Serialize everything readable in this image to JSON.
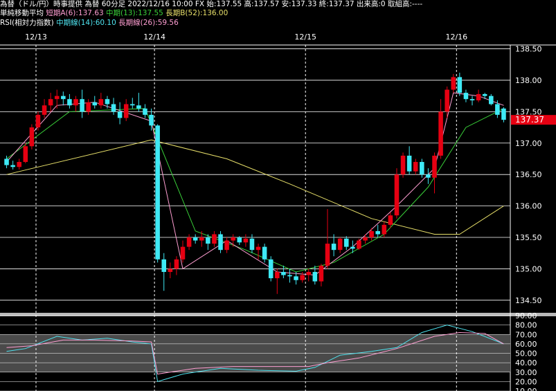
{
  "header": {
    "line1": "為替（ドル/円）時事提供 為替 60分足 2022/12/16 10:00 FX 始:137.55 高:137.57 安:137.33 終:137.37 出来高:0 取組高:----",
    "ma_label": "単純移動平均",
    "ma_short": "短期A(6):137.63",
    "ma_mid": "中期(13):137.55",
    "ma_long": "長期B(52):136.00",
    "rsi_label": "RSI(相対力指数)",
    "rsi_mid": "中期線(14):60.10",
    "rsi_long": "長期線(26):59.56"
  },
  "colors": {
    "up": "#e60012",
    "down": "#3ee9f5",
    "ma_short": "#ff9ed2",
    "ma_mid": "#39d039",
    "ma_long": "#e8e06a",
    "rsi_mid": "#4fe4f0",
    "rsi_long": "#ff9ed2",
    "last_price_bg": "#e60012"
  },
  "last_price": "137.37",
  "chart_data": [
    {
      "type": "candlestick",
      "x": [
        "12/13",
        "12/14",
        "12/15",
        "12/16"
      ],
      "ylim": [
        134.3,
        138.55
      ],
      "yticks": [
        "138.50",
        "138.00",
        "137.50",
        "137.00",
        "136.50",
        "136.00",
        "135.50",
        "135.00",
        "134.50"
      ],
      "candles": [
        [
          136.75,
          136.8,
          136.6,
          136.65
        ],
        [
          136.65,
          136.72,
          136.58,
          136.62
        ],
        [
          136.62,
          136.75,
          136.58,
          136.7
        ],
        [
          136.7,
          137.0,
          136.68,
          136.95
        ],
        [
          136.95,
          137.3,
          136.9,
          137.25
        ],
        [
          137.25,
          137.5,
          137.2,
          137.45
        ],
        [
          137.45,
          137.7,
          137.4,
          137.6
        ],
        [
          137.6,
          137.8,
          137.5,
          137.7
        ],
        [
          137.7,
          137.85,
          137.55,
          137.75
        ],
        [
          137.75,
          137.82,
          137.6,
          137.7
        ],
        [
          137.7,
          137.78,
          137.55,
          137.6
        ],
        [
          137.6,
          137.75,
          137.5,
          137.7
        ],
        [
          137.7,
          137.85,
          137.4,
          137.5
        ],
        [
          137.5,
          137.7,
          137.45,
          137.65
        ],
        [
          137.65,
          137.75,
          137.55,
          137.6
        ],
        [
          137.6,
          137.8,
          137.55,
          137.7
        ],
        [
          137.7,
          137.75,
          137.55,
          137.62
        ],
        [
          137.62,
          137.72,
          137.45,
          137.5
        ],
        [
          137.5,
          137.65,
          137.3,
          137.4
        ],
        [
          137.4,
          137.7,
          137.35,
          137.62
        ],
        [
          137.62,
          137.72,
          137.55,
          137.6
        ],
        [
          137.6,
          137.8,
          137.5,
          137.55
        ],
        [
          137.55,
          137.62,
          137.4,
          137.45
        ],
        [
          137.45,
          137.55,
          137.2,
          137.28
        ],
        [
          137.28,
          137.3,
          135.1,
          135.15
        ],
        [
          135.15,
          135.25,
          134.65,
          134.95
        ],
        [
          134.95,
          135.1,
          134.85,
          135.0
        ],
        [
          135.0,
          135.2,
          134.9,
          135.15
        ],
        [
          135.15,
          135.45,
          135.1,
          135.35
        ],
        [
          135.35,
          135.55,
          135.3,
          135.5
        ],
        [
          135.5,
          135.55,
          135.4,
          135.45
        ],
        [
          135.45,
          135.6,
          135.35,
          135.5
        ],
        [
          135.5,
          135.55,
          135.3,
          135.4
        ],
        [
          135.4,
          135.6,
          135.35,
          135.55
        ],
        [
          135.55,
          135.6,
          135.25,
          135.3
        ],
        [
          135.3,
          135.5,
          135.25,
          135.45
        ],
        [
          135.45,
          135.55,
          135.35,
          135.5
        ],
        [
          135.5,
          135.52,
          135.38,
          135.42
        ],
        [
          135.42,
          135.55,
          135.35,
          135.48
        ],
        [
          135.48,
          135.55,
          135.25,
          135.3
        ],
        [
          135.3,
          135.4,
          135.15,
          135.35
        ],
        [
          135.35,
          135.4,
          135.1,
          135.15
        ],
        [
          135.15,
          135.2,
          134.8,
          134.85
        ],
        [
          134.85,
          135.0,
          134.6,
          134.95
        ],
        [
          134.95,
          135.05,
          134.85,
          134.9
        ],
        [
          134.9,
          135.0,
          134.78,
          134.88
        ],
        [
          134.88,
          134.95,
          134.75,
          134.82
        ],
        [
          134.82,
          134.95,
          134.78,
          134.9
        ],
        [
          134.9,
          135.0,
          134.8,
          134.95
        ],
        [
          134.95,
          135.05,
          134.75,
          134.8
        ],
        [
          134.8,
          135.08,
          134.72,
          135.05
        ],
        [
          135.05,
          135.95,
          135.0,
          135.4
        ],
        [
          135.4,
          135.55,
          135.2,
          135.3
        ],
        [
          135.3,
          135.5,
          135.25,
          135.48
        ],
        [
          135.48,
          135.52,
          135.3,
          135.35
        ],
        [
          135.35,
          135.45,
          135.25,
          135.32
        ],
        [
          135.32,
          135.48,
          135.3,
          135.45
        ],
        [
          135.45,
          135.55,
          135.4,
          135.5
        ],
        [
          135.5,
          135.65,
          135.45,
          135.6
        ],
        [
          135.6,
          135.7,
          135.5,
          135.55
        ],
        [
          135.55,
          135.75,
          135.5,
          135.7
        ],
        [
          135.7,
          135.9,
          135.65,
          135.85
        ],
        [
          135.85,
          136.6,
          135.8,
          136.5
        ],
        [
          136.5,
          136.85,
          136.45,
          136.8
        ],
        [
          136.8,
          136.95,
          136.5,
          136.55
        ],
        [
          136.55,
          136.75,
          136.5,
          136.7
        ],
        [
          136.7,
          136.75,
          136.45,
          136.5
        ],
        [
          136.5,
          136.6,
          136.35,
          136.45
        ],
        [
          136.45,
          136.85,
          136.2,
          136.8
        ],
        [
          136.8,
          137.7,
          136.75,
          137.5
        ],
        [
          137.5,
          137.9,
          137.4,
          137.85
        ],
        [
          137.85,
          138.1,
          137.8,
          138.05
        ],
        [
          138.05,
          138.12,
          137.75,
          137.8
        ],
        [
          137.8,
          137.85,
          137.65,
          137.7
        ],
        [
          137.7,
          137.75,
          137.6,
          137.68
        ],
        [
          137.68,
          137.85,
          137.65,
          137.78
        ],
        [
          137.78,
          137.8,
          137.7,
          137.75
        ],
        [
          137.75,
          137.78,
          137.6,
          137.62
        ],
        [
          137.62,
          137.68,
          137.4,
          137.45
        ],
        [
          137.55,
          137.57,
          137.33,
          137.37
        ]
      ],
      "ma_short": [
        [
          0,
          136.7
        ],
        [
          8,
          137.6
        ],
        [
          14,
          137.65
        ],
        [
          23,
          137.35
        ],
        [
          28,
          135.0
        ],
        [
          35,
          135.45
        ],
        [
          43,
          134.95
        ],
        [
          49,
          134.9
        ],
        [
          55,
          135.35
        ],
        [
          62,
          136.0
        ],
        [
          68,
          136.6
        ],
        [
          71,
          137.8
        ],
        [
          75,
          137.75
        ],
        [
          79,
          137.6
        ]
      ],
      "ma_mid": [
        [
          0,
          136.75
        ],
        [
          10,
          137.5
        ],
        [
          22,
          137.55
        ],
        [
          30,
          135.6
        ],
        [
          38,
          135.3
        ],
        [
          46,
          134.95
        ],
        [
          52,
          135.1
        ],
        [
          60,
          135.55
        ],
        [
          67,
          136.3
        ],
        [
          73,
          137.25
        ],
        [
          79,
          137.55
        ]
      ],
      "ma_long": [
        [
          0,
          136.5
        ],
        [
          23,
          137.05
        ],
        [
          35,
          136.75
        ],
        [
          45,
          136.35
        ],
        [
          58,
          135.8
        ],
        [
          68,
          135.55
        ],
        [
          72,
          135.55
        ],
        [
          79,
          136.0
        ]
      ]
    },
    {
      "type": "line",
      "title": "RSI",
      "ylim": [
        10,
        90
      ],
      "yticks": [
        "90.00",
        "80.00",
        "70.00",
        "60.00",
        "50.00",
        "40.00",
        "30.00",
        "20.00",
        "10.00"
      ],
      "series": [
        {
          "name": "中期線(14)",
          "values": [
            [
              0,
              52
            ],
            [
              3,
              55
            ],
            [
              8,
              68
            ],
            [
              12,
              64
            ],
            [
              16,
              66
            ],
            [
              20,
              62
            ],
            [
              23,
              60
            ],
            [
              24,
              20
            ],
            [
              28,
              28
            ],
            [
              34,
              34
            ],
            [
              40,
              32
            ],
            [
              46,
              31
            ],
            [
              49,
              35
            ],
            [
              53,
              48
            ],
            [
              58,
              52
            ],
            [
              62,
              56
            ],
            [
              66,
              72
            ],
            [
              70,
              80
            ],
            [
              74,
              73
            ],
            [
              79,
              60
            ]
          ]
        },
        {
          "name": "長期線(26)",
          "values": [
            [
              0,
              56
            ],
            [
              4,
              58
            ],
            [
              9,
              64
            ],
            [
              14,
              64
            ],
            [
              20,
              63
            ],
            [
              23,
              62
            ],
            [
              24,
              28
            ],
            [
              30,
              34
            ],
            [
              36,
              36
            ],
            [
              42,
              36
            ],
            [
              48,
              36
            ],
            [
              51,
              40
            ],
            [
              56,
              45
            ],
            [
              62,
              55
            ],
            [
              68,
              68
            ],
            [
              72,
              72
            ],
            [
              76,
              71
            ],
            [
              79,
              60
            ]
          ]
        }
      ]
    }
  ]
}
